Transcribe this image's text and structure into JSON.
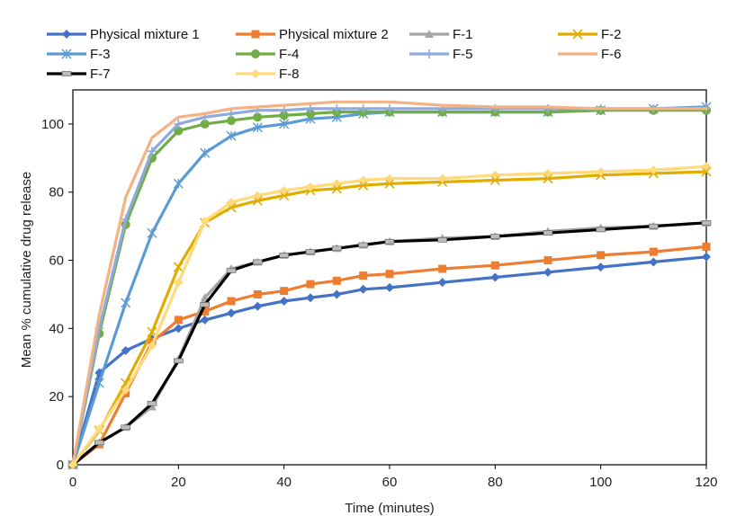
{
  "chart_data": {
    "type": "line",
    "title": "",
    "xlabel": "Time (minutes)",
    "ylabel": "Mean % cumulative drug release",
    "xlim": [
      0,
      120
    ],
    "ylim": [
      0,
      110
    ],
    "xticks": [
      0,
      20,
      40,
      60,
      80,
      100,
      120
    ],
    "yticks": [
      0,
      20,
      40,
      60,
      80,
      100
    ],
    "grid": false,
    "legend_position": "top",
    "x": [
      0,
      5,
      10,
      15,
      20,
      25,
      30,
      35,
      40,
      45,
      50,
      55,
      60,
      70,
      80,
      90,
      100,
      110,
      120
    ],
    "series": [
      {
        "name": "Physical mixture 1",
        "color": "#4472C4",
        "marker": "diamond",
        "values": [
          0,
          27,
          33.5,
          37,
          40,
          42.5,
          44.5,
          46.5,
          48,
          49,
          50,
          51.5,
          52,
          53.5,
          55,
          56.5,
          58,
          59.5,
          61
        ]
      },
      {
        "name": "Physical mixture 2",
        "color": "#ED7D31",
        "marker": "square",
        "values": [
          0,
          6,
          21,
          36,
          42.5,
          45,
          48,
          50,
          51,
          53,
          54,
          55.5,
          56,
          57.5,
          58.5,
          60,
          61.5,
          62.5,
          64
        ]
      },
      {
        "name": "F-1",
        "color": "#A5A5A5",
        "marker": "triangle",
        "values": [
          0,
          6.5,
          11,
          17,
          31,
          49,
          57.5,
          59.5,
          61.5,
          62.5,
          63.5,
          64.5,
          65.5,
          66.5,
          67,
          68.5,
          69.5,
          70,
          71
        ]
      },
      {
        "name": "F-2",
        "color": "#E0AC00",
        "marker": "x",
        "values": [
          0,
          10,
          24,
          39,
          58,
          71,
          75.5,
          77.5,
          79,
          80.5,
          81,
          82,
          82.5,
          83,
          83.5,
          84,
          85,
          85.5,
          86
        ]
      },
      {
        "name": "F-3",
        "color": "#5B9BD5",
        "marker": "star",
        "values": [
          0,
          24,
          47.5,
          68,
          82.5,
          91.5,
          96.5,
          99,
          100,
          101.5,
          102,
          103,
          103.5,
          103.5,
          103.5,
          103.5,
          104,
          104.5,
          105
        ]
      },
      {
        "name": "F-4",
        "color": "#70AD47",
        "marker": "circle",
        "values": [
          0,
          38.5,
          70.5,
          90,
          98,
          100,
          101,
          102,
          102.5,
          103,
          103.5,
          103.5,
          103.5,
          103.5,
          103.5,
          103.5,
          104,
          104,
          104
        ]
      },
      {
        "name": "F-5",
        "color": "#8FAADC",
        "marker": "plus",
        "values": [
          0,
          40,
          72,
          92,
          100,
          102,
          103,
          104,
          104,
          104.5,
          104.5,
          104.5,
          104.5,
          104.5,
          104.5,
          104.5,
          104.5,
          104.5,
          104.5
        ]
      },
      {
        "name": "F-6",
        "color": "#F4B183",
        "marker": "none",
        "values": [
          0,
          44,
          78.5,
          96,
          102,
          103,
          104.5,
          105,
          105.5,
          106,
          106.5,
          106.5,
          106.5,
          105.5,
          105,
          105,
          104.5,
          104.5,
          104.5
        ]
      },
      {
        "name": "F-7",
        "color": "#000000",
        "marker": "dash",
        "values": [
          0,
          6.5,
          11,
          18,
          30.5,
          47,
          57,
          59.5,
          61.5,
          62.5,
          63.5,
          64.5,
          65.5,
          66,
          67,
          68,
          69,
          70,
          71
        ]
      },
      {
        "name": "F-8",
        "color": "#FFD97A",
        "marker": "diamond",
        "values": [
          0,
          10.5,
          22,
          35,
          53.5,
          71.5,
          77,
          79,
          80.5,
          81.5,
          82.5,
          83.5,
          84,
          84,
          85,
          85.5,
          86,
          86.5,
          87.5
        ]
      }
    ]
  }
}
